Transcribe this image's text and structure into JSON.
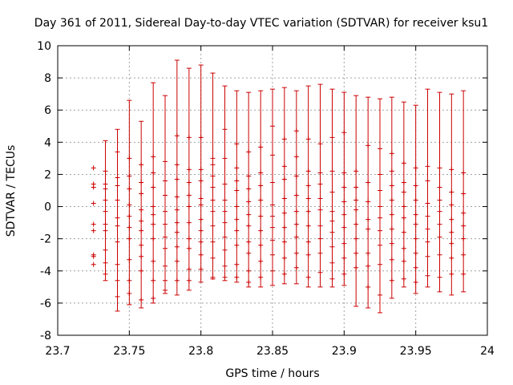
{
  "chart_data": {
    "type": "errorbar",
    "title": "Day 361 of 2011, Sidereal Day-to-day VTEC variation (SDTVAR) for receiver ksu1",
    "xlabel": "GPS time / hours",
    "ylabel": "SDTVAR / TECUs",
    "xlim": [
      23.7,
      24.0
    ],
    "ylim": [
      -8,
      10
    ],
    "xticks": [
      "23.7",
      "23.75",
      "23.8",
      "23.85",
      "23.9",
      "23.95",
      "24"
    ],
    "yticks": [
      "-8",
      "-6",
      "-4",
      "-2",
      "0",
      "2",
      "4",
      "6",
      "8",
      "10"
    ],
    "grid": true,
    "color": "#cc0000",
    "series": [
      {
        "x": 23.725,
        "low": null,
        "high": null,
        "points": [
          2.4,
          1.4,
          1.2,
          0.2,
          -1.1,
          -1.5,
          -3.0,
          -3.1,
          -3.6
        ]
      },
      {
        "x": 23.7333,
        "low": -4.6,
        "high": 4.1,
        "points": [
          2.2,
          1.4,
          1.1,
          0.4,
          -0.3,
          -1.1,
          -1.5,
          -2.7,
          -3.5,
          -4.2
        ]
      },
      {
        "x": 23.7417,
        "low": -6.5,
        "high": 4.8,
        "points": [
          3.4,
          1.8,
          1.3,
          0.4,
          -0.7,
          -1.2,
          -2.2,
          -3.6,
          -4.6,
          -5.6
        ]
      },
      {
        "x": 23.75,
        "low": -6.1,
        "high": 6.6,
        "points": [
          3.0,
          1.9,
          1.1,
          0.1,
          -0.6,
          -1.3,
          -2.0,
          -3.3,
          -4.6,
          -5.4
        ]
      },
      {
        "x": 23.7583,
        "low": -6.3,
        "high": 5.3,
        "points": [
          2.6,
          1.5,
          0.8,
          -0.2,
          -0.9,
          -1.5,
          -2.4,
          -3.1,
          -4.0,
          -5.8
        ]
      },
      {
        "x": 23.7667,
        "low": -6.0,
        "high": 7.7,
        "points": [
          3.1,
          2.1,
          1.2,
          0.0,
          -0.5,
          -1.1,
          -2.0,
          -3.4,
          -4.6,
          -5.7
        ]
      },
      {
        "x": 23.775,
        "low": -5.4,
        "high": 6.9,
        "points": [
          2.8,
          1.6,
          0.7,
          -0.3,
          -1.1,
          -1.9,
          -2.6,
          -3.7,
          -4.6,
          -5.2
        ]
      },
      {
        "x": 23.7833,
        "low": -5.5,
        "high": 9.1,
        "points": [
          4.4,
          2.6,
          1.7,
          0.6,
          -0.2,
          -1.0,
          -1.6,
          -2.5,
          -3.4,
          -4.6
        ]
      },
      {
        "x": 23.7917,
        "low": -5.2,
        "high": 8.6,
        "points": [
          4.3,
          2.3,
          1.5,
          0.7,
          0.0,
          -1.0,
          -2.0,
          -2.6,
          -3.9,
          -4.6
        ]
      },
      {
        "x": 23.8,
        "low": -4.7,
        "high": 8.8,
        "points": [
          4.3,
          2.3,
          1.6,
          0.5,
          0.1,
          -0.8,
          -1.5,
          -2.2,
          -3.0,
          -3.9
        ]
      },
      {
        "x": 23.8083,
        "low": -4.5,
        "high": 8.3,
        "points": [
          3.0,
          2.6,
          1.9,
          1.2,
          0.4,
          -0.3,
          -1.2,
          -2.2,
          -3.2,
          -4.4
        ]
      },
      {
        "x": 23.8167,
        "low": -4.6,
        "high": 7.5,
        "points": [
          4.8,
          3.0,
          1.4,
          0.4,
          -0.3,
          -1.0,
          -1.9,
          -2.7,
          -3.7,
          -4.4
        ]
      },
      {
        "x": 23.825,
        "low": -4.7,
        "high": 7.2,
        "points": [
          3.9,
          2.4,
          1.6,
          1.0,
          0.0,
          -0.8,
          -1.5,
          -2.4,
          -3.6,
          -4.4
        ]
      },
      {
        "x": 23.8333,
        "low": -5.0,
        "high": 7.1,
        "points": [
          3.4,
          1.9,
          1.1,
          0.3,
          -0.5,
          -1.2,
          -2.2,
          -2.9,
          -4.0,
          -4.7
        ]
      },
      {
        "x": 23.8417,
        "low": -5.0,
        "high": 7.2,
        "points": [
          3.7,
          2.1,
          1.3,
          0.4,
          -0.6,
          -1.5,
          -2.4,
          -3.4,
          -4.4
        ]
      },
      {
        "x": 23.85,
        "low": -4.9,
        "high": 7.3,
        "points": [
          5.0,
          3.2,
          1.5,
          0.1,
          -0.6,
          -1.3,
          -2.1,
          -3.0,
          -4.0
        ]
      },
      {
        "x": 23.8583,
        "low": -4.8,
        "high": 7.4,
        "points": [
          4.2,
          2.5,
          1.7,
          0.5,
          -0.4,
          -1.3,
          -2.2,
          -3.2,
          -4.2
        ]
      },
      {
        "x": 23.8667,
        "low": -4.8,
        "high": 7.2,
        "points": [
          4.7,
          3.1,
          1.9,
          0.7,
          -0.3,
          -1.1,
          -1.9,
          -2.9,
          -3.8
        ]
      },
      {
        "x": 23.875,
        "low": -5.0,
        "high": 7.5,
        "points": [
          4.2,
          2.2,
          1.3,
          0.5,
          -0.3,
          -1.2,
          -2.2,
          -3.0,
          -4.4
        ]
      },
      {
        "x": 23.8833,
        "low": -5.0,
        "high": 7.6,
        "points": [
          3.9,
          2.1,
          1.4,
          0.5,
          -0.2,
          -1.2,
          -2.0,
          -2.9,
          -4.1
        ]
      },
      {
        "x": 23.8917,
        "low": -5.0,
        "high": 7.3,
        "points": [
          4.3,
          2.2,
          0.9,
          -0.3,
          -0.9,
          -1.6,
          -2.5,
          -3.5,
          -4.5
        ]
      },
      {
        "x": 23.9,
        "low": -4.9,
        "high": 7.1,
        "points": [
          4.6,
          2.1,
          1.2,
          0.3,
          -0.5,
          -1.3,
          -2.3,
          -3.2,
          -4.2
        ]
      },
      {
        "x": 23.9083,
        "low": -6.2,
        "high": 6.9,
        "points": [
          2.2,
          1.2,
          0.4,
          -0.2,
          -1.1,
          -2.0,
          -2.9,
          -3.8
        ]
      },
      {
        "x": 23.9167,
        "low": -6.3,
        "high": 6.8,
        "points": [
          3.8,
          1.5,
          0.3,
          -0.8,
          -1.4,
          -2.9,
          -3.7,
          -5.0
        ]
      },
      {
        "x": 23.925,
        "low": -6.6,
        "high": 6.7,
        "points": [
          3.6,
          2.0,
          1.0,
          0.0,
          -0.7,
          -1.5,
          -2.4,
          -3.6,
          -5.5
        ]
      },
      {
        "x": 23.9333,
        "low": -5.7,
        "high": 6.8,
        "points": [
          3.3,
          2.2,
          1.3,
          0.4,
          -0.5,
          -1.4,
          -2.3,
          -3.3,
          -4.6
        ]
      },
      {
        "x": 23.9417,
        "low": -5.0,
        "high": 6.5,
        "points": [
          2.7,
          1.5,
          0.9,
          0.0,
          -0.7,
          -1.6,
          -2.6,
          -3.4,
          -4.5
        ]
      },
      {
        "x": 23.95,
        "low": -5.4,
        "high": 6.3,
        "points": [
          2.4,
          1.3,
          0.4,
          -0.5,
          -1.1,
          -2.0,
          -2.9,
          -3.8,
          -4.7
        ]
      },
      {
        "x": 23.9583,
        "low": -5.0,
        "high": 7.3,
        "points": [
          2.5,
          1.6,
          0.2,
          -0.6,
          -1.4,
          -2.2,
          -3.1,
          -4.3
        ]
      },
      {
        "x": 23.9667,
        "low": -5.3,
        "high": 7.1,
        "points": [
          2.4,
          1.2,
          0.4,
          -0.3,
          -1.1,
          -1.9,
          -3.0,
          -4.4
        ]
      },
      {
        "x": 23.975,
        "low": -5.5,
        "high": 7.0,
        "points": [
          2.3,
          0.9,
          0.1,
          -0.8,
          -1.6,
          -2.3,
          -3.2,
          -4.2
        ]
      },
      {
        "x": 23.9833,
        "low": -5.3,
        "high": 7.2,
        "points": [
          2.1,
          0.8,
          -0.4,
          -1.2,
          -2.0,
          -3.0,
          -4.2
        ]
      }
    ]
  }
}
